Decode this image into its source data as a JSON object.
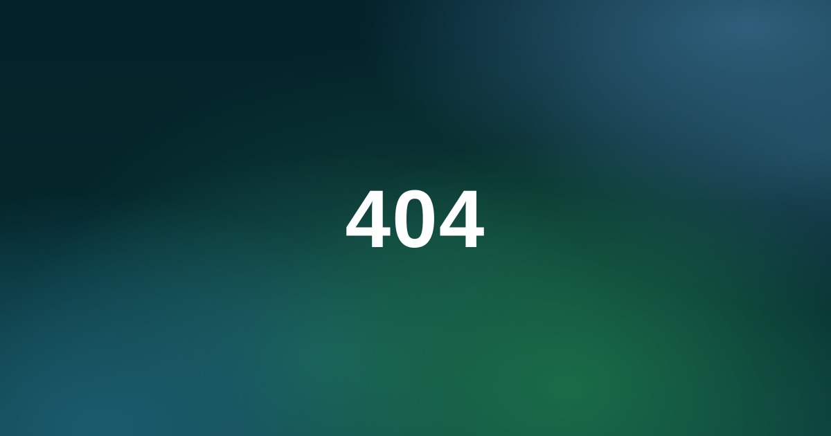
{
  "error": {
    "code": "404"
  },
  "colors": {
    "text": "#ffffff",
    "background_dark": "#03212a",
    "background_green": "#1a6e48",
    "background_teal": "#1b5c70",
    "background_blue": "#2e5e7a"
  }
}
